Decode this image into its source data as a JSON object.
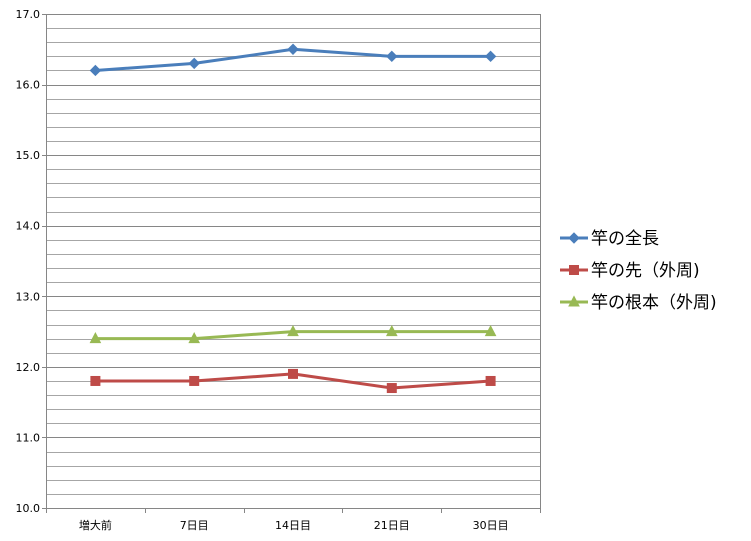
{
  "chart_data": {
    "type": "line",
    "categories": [
      "増大前",
      "7日目",
      "14日目",
      "21日目",
      "30日目"
    ],
    "ylim": [
      10.0,
      17.0
    ],
    "yticks": [
      "10.0",
      "11.0",
      "12.0",
      "13.0",
      "14.0",
      "15.0",
      "16.0",
      "17.0"
    ],
    "minor_grid_step": 0.2,
    "grid": true,
    "legend_position": "right",
    "series": [
      {
        "name": "竿の全長",
        "values": [
          16.2,
          16.3,
          16.5,
          16.4,
          16.4
        ],
        "color": "#4A7EBB",
        "marker": "diamond"
      },
      {
        "name": "竿の先（外周)",
        "values": [
          11.8,
          11.8,
          11.9,
          11.7,
          11.8
        ],
        "color": "#BE4B48",
        "marker": "square"
      },
      {
        "name": "竿の根本（外周)",
        "values": [
          12.4,
          12.4,
          12.5,
          12.5,
          12.5
        ],
        "color": "#98B954",
        "marker": "triangle"
      }
    ]
  }
}
